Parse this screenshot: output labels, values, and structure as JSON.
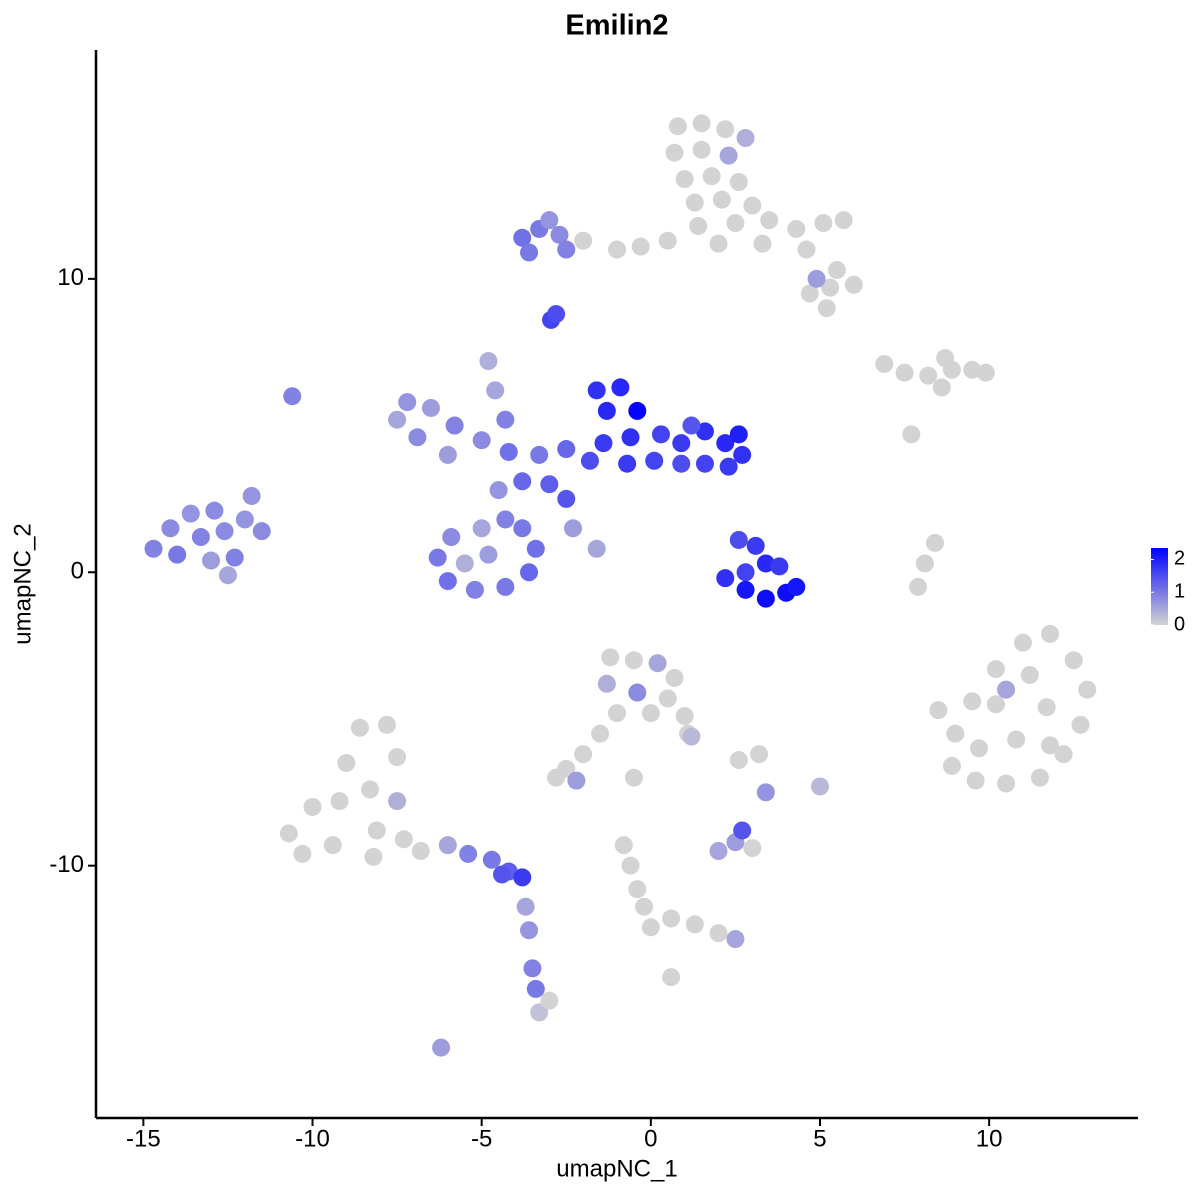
{
  "chart_data": {
    "type": "scatter",
    "title": "Emilin2",
    "x_label": "umapNC_1",
    "y_label": "umapNC_2",
    "xlim": [
      -16.4,
      14.4
    ],
    "ylim": [
      -18.6,
      17.8
    ],
    "xticks": [
      -15,
      -10,
      -5,
      0,
      5,
      10
    ],
    "yticks": [
      -10,
      0,
      10
    ],
    "color_low": "#d3d3d3",
    "color_high": "#0000ff",
    "color_limits": [
      0,
      2.35
    ],
    "color_ticks": [
      0,
      1,
      2
    ],
    "x": [
      0.8,
      1.5,
      2.2,
      0.7,
      1.5,
      2.3,
      1.0,
      1.8,
      2.6,
      1.3,
      2.1,
      3.0,
      1.4,
      2.5,
      3.5,
      4.3,
      5.1,
      5.7,
      2.0,
      3.3,
      4.6,
      5.5,
      6.0,
      5.3,
      4.7,
      5.2,
      0.5,
      -0.3,
      -1.0,
      4.9,
      2.8,
      -2.0,
      -2.7,
      -3.3,
      -3.8,
      -3.0,
      -3.6,
      -2.5,
      -2.95,
      -2.8,
      6.9,
      7.5,
      8.2,
      8.9,
      9.5,
      9.9,
      8.7,
      8.6,
      7.7,
      -14.7,
      -14.2,
      -13.6,
      -12.9,
      -14.0,
      -13.3,
      -12.6,
      -12.0,
      -11.5,
      -13.0,
      -12.3,
      -11.8,
      -12.5,
      -10.6,
      -1.6,
      -0.9,
      -0.4,
      -1.3,
      -0.6,
      -1.4,
      0.3,
      0.9,
      1.6,
      2.2,
      2.7,
      2.3,
      1.6,
      0.9,
      0.1,
      -0.7,
      -1.8,
      1.2,
      2.6,
      -2.5,
      -3.3,
      -4.2,
      -5.0,
      -5.8,
      -6.5,
      -7.2,
      -7.5,
      -6.9,
      -6.0,
      -4.8,
      -4.6,
      -4.3,
      -3.8,
      -3.0,
      -2.5,
      -4.5,
      -4.3,
      -5.0,
      -5.9,
      -6.3,
      -6.0,
      -5.2,
      -4.3,
      -3.6,
      -3.4,
      -3.8,
      -4.8,
      -5.5,
      -2.3,
      -1.6,
      2.6,
      3.1,
      3.4,
      2.8,
      2.2,
      2.8,
      3.4,
      4.0,
      4.3,
      3.8,
      9.0,
      9.5,
      10.2,
      11.0,
      11.8,
      12.5,
      12.9,
      12.7,
      12.2,
      11.5,
      10.5,
      9.6,
      8.9,
      10.2,
      11.2,
      11.7,
      10.8,
      9.7,
      11.8,
      10.5,
      8.5,
      7.9,
      8.1,
      8.4,
      5.0,
      -10.7,
      -10.0,
      -9.0,
      -8.6,
      -7.8,
      -7.5,
      -8.3,
      -9.2,
      -8.1,
      -9.4,
      -8.2,
      -7.3,
      -7.5,
      -10.3,
      -6.8,
      -6.0,
      -5.4,
      -4.7,
      -4.2,
      -3.8,
      -4.4,
      -3.7,
      -3.6,
      -3.5,
      -3.4,
      -3.3,
      -3.0,
      -6.2,
      -1.2,
      -0.5,
      0.2,
      0.7,
      -1.3,
      -0.4,
      0.5,
      -1.0,
      0.0,
      1.0,
      1.1,
      -1.5,
      -2.0,
      -2.5,
      -2.8,
      -2.2,
      -0.5,
      1.2,
      2.0,
      2.5,
      3.0,
      2.7,
      3.4,
      2.6,
      3.2,
      -0.8,
      -0.6,
      -0.4,
      -0.2,
      0.0,
      0.6,
      1.3,
      2.0,
      2.5,
      0.6
    ],
    "y": [
      15.2,
      15.3,
      15.1,
      14.3,
      14.4,
      14.2,
      13.4,
      13.5,
      13.3,
      12.6,
      12.7,
      12.5,
      11.8,
      11.9,
      12.0,
      11.7,
      11.9,
      12.0,
      11.2,
      11.2,
      11.0,
      10.3,
      9.8,
      9.7,
      9.5,
      9.0,
      11.3,
      11.1,
      11.0,
      10.0,
      14.8,
      11.3,
      11.5,
      11.7,
      11.4,
      12.0,
      10.9,
      11.0,
      8.6,
      8.8,
      7.1,
      6.8,
      6.7,
      6.9,
      6.9,
      6.8,
      7.3,
      6.3,
      4.7,
      0.8,
      1.5,
      2.0,
      2.1,
      0.6,
      1.2,
      1.4,
      1.8,
      1.4,
      0.4,
      0.5,
      2.6,
      -0.1,
      6.0,
      6.2,
      6.3,
      5.5,
      5.5,
      4.6,
      4.4,
      4.7,
      4.4,
      4.8,
      4.4,
      4.0,
      3.6,
      3.7,
      3.7,
      3.8,
      3.7,
      3.8,
      5.0,
      4.7,
      4.2,
      4.0,
      4.1,
      4.5,
      5.0,
      5.6,
      5.8,
      5.2,
      4.6,
      4.0,
      7.2,
      6.2,
      5.2,
      3.1,
      3.0,
      2.5,
      2.8,
      1.8,
      1.5,
      1.2,
      0.5,
      -0.3,
      -0.6,
      -0.5,
      0.0,
      0.8,
      1.5,
      0.6,
      0.3,
      1.5,
      0.8,
      1.1,
      0.9,
      0.3,
      0.0,
      -0.2,
      -0.6,
      -0.9,
      -0.7,
      -0.5,
      0.2,
      -5.5,
      -4.4,
      -3.3,
      -2.4,
      -2.1,
      -3.0,
      -4.0,
      -5.2,
      -6.2,
      -7.0,
      -7.2,
      -7.1,
      -6.6,
      -4.5,
      -3.5,
      -4.6,
      -5.7,
      -6.0,
      -5.9,
      -4.0,
      -4.7,
      -0.5,
      0.3,
      1.0,
      -7.3,
      -8.9,
      -8.0,
      -6.5,
      -5.3,
      -5.2,
      -6.3,
      -7.4,
      -7.8,
      -8.8,
      -9.3,
      -9.7,
      -9.1,
      -7.8,
      -9.6,
      -9.5,
      -9.3,
      -9.6,
      -9.8,
      -10.2,
      -10.4,
      -10.3,
      -11.4,
      -12.2,
      -13.5,
      -14.2,
      -15.0,
      -14.6,
      -16.2,
      -2.9,
      -3.0,
      -3.1,
      -3.6,
      -3.8,
      -4.1,
      -4.3,
      -4.8,
      -4.8,
      -4.9,
      -5.5,
      -5.5,
      -6.2,
      -6.7,
      -7.0,
      -7.1,
      -7.0,
      -5.6,
      -9.5,
      -9.2,
      -9.4,
      -8.8,
      -7.5,
      -6.4,
      -6.2,
      -9.3,
      -10.0,
      -10.8,
      -11.4,
      -12.1,
      -11.8,
      -12.0,
      -12.3,
      -12.5,
      -13.8
    ],
    "expression": [
      0,
      0,
      0,
      0,
      0,
      0.5,
      0,
      0,
      0,
      0,
      0,
      0,
      0,
      0,
      0,
      0,
      0,
      0,
      0,
      0,
      0,
      0,
      0,
      0,
      0,
      0,
      0,
      0,
      0,
      0.6,
      0.4,
      0,
      0.8,
      1.0,
      1.1,
      0.7,
      1.0,
      0.9,
      1.6,
      1.5,
      0,
      0,
      0,
      0,
      0,
      0,
      0,
      0,
      0,
      0.9,
      0.8,
      0.7,
      0.8,
      1.0,
      0.9,
      0.8,
      0.7,
      0.8,
      0.6,
      0.9,
      0.7,
      0.5,
      0.9,
      1.8,
      1.9,
      2.3,
      1.9,
      1.8,
      1.7,
      1.6,
      1.7,
      1.8,
      1.9,
      1.8,
      1.7,
      1.6,
      1.5,
      1.6,
      1.7,
      1.5,
      1.4,
      2.0,
      1.2,
      1.0,
      1.1,
      0.8,
      0.9,
      0.6,
      0.7,
      0.5,
      0.8,
      0.6,
      0.4,
      0.5,
      0.9,
      1.2,
      1.3,
      1.4,
      0.7,
      0.9,
      0.5,
      0.8,
      1.0,
      1.1,
      0.9,
      1.0,
      1.2,
      1.1,
      1.0,
      0.6,
      0.4,
      0.6,
      0.5,
      1.5,
      1.7,
      1.9,
      1.6,
      1.8,
      2.1,
      2.2,
      2.2,
      2.1,
      1.7,
      0,
      0,
      0,
      0,
      0,
      0,
      0,
      0,
      0,
      0,
      0,
      0,
      0,
      0,
      0,
      0,
      0,
      0,
      0,
      0.5,
      0,
      0,
      0,
      0,
      0.3,
      0,
      0,
      0,
      0,
      0,
      0,
      0,
      0,
      0,
      0,
      0,
      0,
      0.4,
      0,
      0,
      0.5,
      0.9,
      1.0,
      1.3,
      1.7,
      1.4,
      0.5,
      0.7,
      0.9,
      1.0,
      0.2,
      0,
      0.6,
      0,
      0,
      0.5,
      0,
      0.4,
      0.8,
      0,
      0,
      0,
      0,
      0,
      0,
      0,
      0,
      0,
      0.6,
      0,
      0.3,
      0.5,
      0.6,
      0,
      1.4,
      0.7,
      0,
      0,
      0,
      0,
      0,
      0,
      0,
      0,
      0,
      0,
      0.5,
      0
    ]
  }
}
